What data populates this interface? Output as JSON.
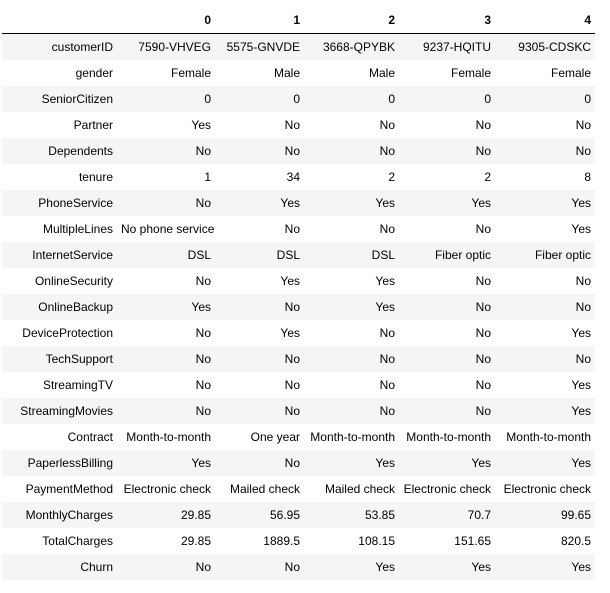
{
  "table": {
    "columns": [
      "0",
      "1",
      "2",
      "3",
      "4"
    ],
    "rows": [
      {
        "label": "customerID",
        "values": [
          "7590-VHVEG",
          "5575-GNVDE",
          "3668-QPYBK",
          "9237-HQITU",
          "9305-CDSKC"
        ]
      },
      {
        "label": "gender",
        "values": [
          "Female",
          "Male",
          "Male",
          "Female",
          "Female"
        ]
      },
      {
        "label": "SeniorCitizen",
        "values": [
          "0",
          "0",
          "0",
          "0",
          "0"
        ]
      },
      {
        "label": "Partner",
        "values": [
          "Yes",
          "No",
          "No",
          "No",
          "No"
        ]
      },
      {
        "label": "Dependents",
        "values": [
          "No",
          "No",
          "No",
          "No",
          "No"
        ]
      },
      {
        "label": "tenure",
        "values": [
          "1",
          "34",
          "2",
          "2",
          "8"
        ]
      },
      {
        "label": "PhoneService",
        "values": [
          "No",
          "Yes",
          "Yes",
          "Yes",
          "Yes"
        ]
      },
      {
        "label": "MultipleLines",
        "values": [
          "No phone service",
          "No",
          "No",
          "No",
          "Yes"
        ]
      },
      {
        "label": "InternetService",
        "values": [
          "DSL",
          "DSL",
          "DSL",
          "Fiber optic",
          "Fiber optic"
        ]
      },
      {
        "label": "OnlineSecurity",
        "values": [
          "No",
          "Yes",
          "Yes",
          "No",
          "No"
        ]
      },
      {
        "label": "OnlineBackup",
        "values": [
          "Yes",
          "No",
          "Yes",
          "No",
          "No"
        ]
      },
      {
        "label": "DeviceProtection",
        "values": [
          "No",
          "Yes",
          "No",
          "No",
          "Yes"
        ]
      },
      {
        "label": "TechSupport",
        "values": [
          "No",
          "No",
          "No",
          "No",
          "No"
        ]
      },
      {
        "label": "StreamingTV",
        "values": [
          "No",
          "No",
          "No",
          "No",
          "Yes"
        ]
      },
      {
        "label": "StreamingMovies",
        "values": [
          "No",
          "No",
          "No",
          "No",
          "Yes"
        ]
      },
      {
        "label": "Contract",
        "values": [
          "Month-to-month",
          "One year",
          "Month-to-month",
          "Month-to-month",
          "Month-to-month"
        ]
      },
      {
        "label": "PaperlessBilling",
        "values": [
          "Yes",
          "No",
          "Yes",
          "Yes",
          "Yes"
        ]
      },
      {
        "label": "PaymentMethod",
        "values": [
          "Electronic check",
          "Mailed check",
          "Mailed check",
          "Electronic check",
          "Electronic check"
        ]
      },
      {
        "label": "MonthlyCharges",
        "values": [
          "29.85",
          "56.95",
          "53.85",
          "70.7",
          "99.65"
        ]
      },
      {
        "label": "TotalCharges",
        "values": [
          "29.85",
          "1889.5",
          "108.15",
          "151.65",
          "820.5"
        ]
      },
      {
        "label": "Churn",
        "values": [
          "No",
          "No",
          "Yes",
          "Yes",
          "Yes"
        ]
      }
    ],
    "style": {
      "stripe_color": "#f5f5f5",
      "header_border_color": "#000000",
      "text_color": "#000000",
      "background_color": "#ffffff"
    }
  }
}
